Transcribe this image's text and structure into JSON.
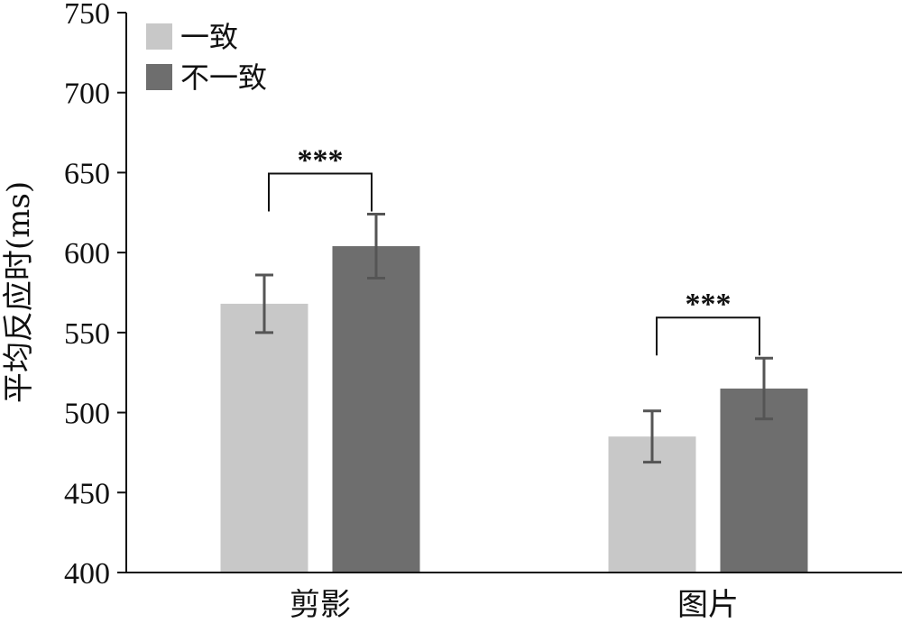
{
  "chart_data": {
    "type": "bar",
    "title": "",
    "xlabel": "",
    "ylabel": "平均反应时(ms)",
    "ylim": [
      400,
      750
    ],
    "yticks": [
      400,
      450,
      500,
      550,
      600,
      650,
      700,
      750
    ],
    "grid": false,
    "legend_position": "top-left",
    "categories": [
      "剪影",
      "图片"
    ],
    "series": [
      {
        "name": "一致",
        "color": "#c8c8c8",
        "values": [
          568,
          485
        ],
        "errors": [
          18,
          16
        ]
      },
      {
        "name": "不一致",
        "color": "#6e6e6e",
        "values": [
          604,
          515
        ],
        "errors": [
          20,
          19
        ]
      }
    ],
    "annotations": [
      {
        "category_index": 0,
        "text": "***"
      },
      {
        "category_index": 1,
        "text": "***"
      }
    ]
  }
}
